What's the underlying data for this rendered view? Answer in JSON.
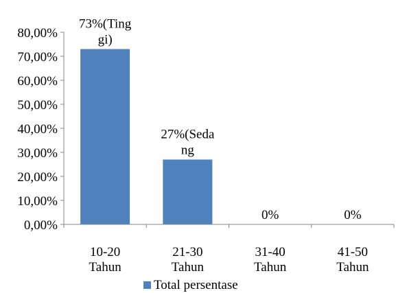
{
  "chart_data": {
    "type": "bar",
    "categories": [
      [
        "10-20",
        "Tahun"
      ],
      [
        "21-30",
        "Tahun"
      ],
      [
        "31-40",
        "Tahun"
      ],
      [
        "41-50",
        "Tahun"
      ]
    ],
    "values": [
      73,
      27,
      0,
      0
    ],
    "data_labels": [
      [
        "73%(Ting",
        "gi)"
      ],
      [
        "27%(Seda",
        "ng"
      ],
      [
        "0%"
      ],
      [
        "0%"
      ]
    ],
    "yticks": [
      "0,00%",
      "10,00%",
      "20,00%",
      "30,00%",
      "40,00%",
      "50,00%",
      "60,00%",
      "70,00%",
      "80,00%"
    ],
    "ylim": [
      0,
      80
    ],
    "ystep": 10,
    "grid": false,
    "legend": {
      "position": "bottom",
      "entries": [
        "Total persentase"
      ]
    },
    "series": [
      {
        "name": "Total persentase",
        "values": [
          73,
          27,
          0,
          0
        ],
        "color": "#4f81bd"
      }
    ]
  }
}
